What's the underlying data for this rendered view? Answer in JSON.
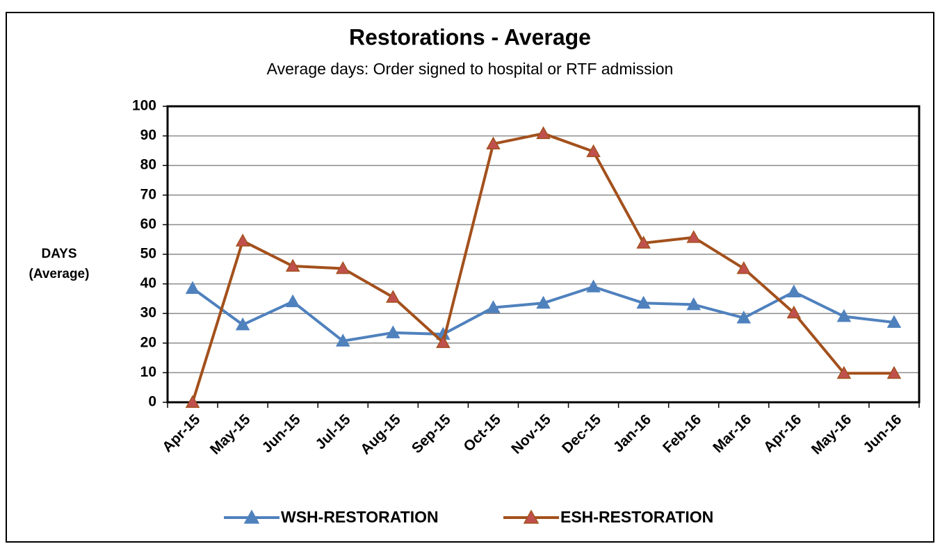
{
  "chart_data": {
    "type": "line",
    "title": "Restorations - Average",
    "subtitle": "Average days: Order signed to hospital or RTF admission",
    "y_label_lines": [
      "DAYS",
      "(Average)"
    ],
    "categories": [
      "Apr-15",
      "May-15",
      "Jun-15",
      "Jul-15",
      "Aug-15",
      "Sep-15",
      "Oct-15",
      "Nov-15",
      "Dec-15",
      "Jan-16",
      "Feb-16",
      "Mar-16",
      "Apr-16",
      "May-16",
      "Jun-16"
    ],
    "series": [
      {
        "name": "WSH-RESTORATION",
        "color": "#4f81bd",
        "marker_color": "#4f81bd",
        "values": [
          38.5,
          26.2,
          34,
          20.7,
          23.5,
          23,
          32,
          33.5,
          39,
          33.5,
          33,
          28.5,
          37.3,
          29,
          27
        ]
      },
      {
        "name": "ESH-RESTORATION",
        "color": "#a3501c",
        "marker_color": "#c0504d",
        "values": [
          0,
          54.5,
          46,
          45.2,
          35.5,
          20.2,
          87.3,
          90.8,
          84.7,
          53.8,
          55.7,
          45.2,
          30.2,
          9.8,
          9.8
        ]
      }
    ],
    "ylim": [
      0,
      100
    ],
    "yticks": [
      0,
      10,
      20,
      30,
      40,
      50,
      60,
      70,
      80,
      90,
      100
    ],
    "grid": true,
    "legend": "bottom"
  }
}
